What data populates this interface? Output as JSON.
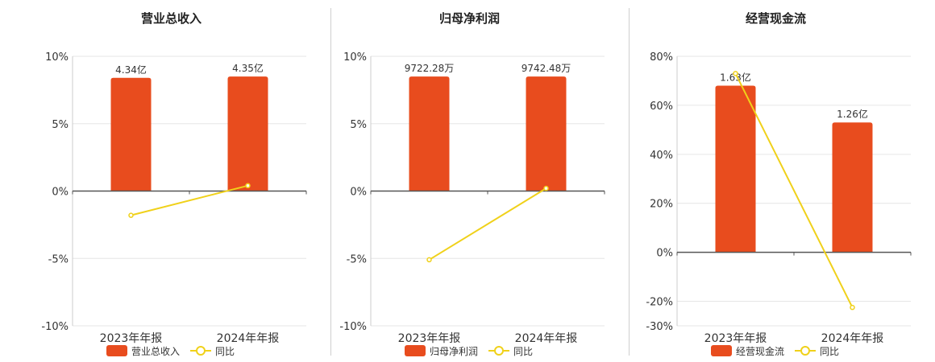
{
  "colors": {
    "bar": "#E84C1E",
    "line": "#F0D11A",
    "grid": "#e6e6e6",
    "axis": "#555555"
  },
  "legend": {
    "bar_icon": "bar-swatch",
    "line_icon": "line-with-circle-marker"
  },
  "chart_data": [
    {
      "type": "bar",
      "title": "营业总收入",
      "categories": [
        "2023年年报",
        "2024年年报"
      ],
      "bar_labels": [
        "4.34亿",
        "4.35亿"
      ],
      "bar_legend": "营业总收入",
      "line_legend": "同比",
      "series": [
        {
          "name": "营业总收入",
          "kind": "bar",
          "values": [
            8.4,
            8.5
          ]
        },
        {
          "name": "同比",
          "kind": "line",
          "values": [
            -1.8,
            0.4
          ]
        }
      ],
      "ylim": [
        -10,
        10
      ],
      "yticks": [
        "10%",
        "5%",
        "0%",
        "-5%",
        "-10%"
      ],
      "ytick_values": [
        10,
        5,
        0,
        -5,
        -10
      ],
      "grid": true
    },
    {
      "type": "bar",
      "title": "归母净利润",
      "categories": [
        "2023年年报",
        "2024年年报"
      ],
      "bar_labels": [
        "9722.28万",
        "9742.48万"
      ],
      "bar_legend": "归母净利润",
      "line_legend": "同比",
      "series": [
        {
          "name": "归母净利润",
          "kind": "bar",
          "values": [
            8.5,
            8.5
          ]
        },
        {
          "name": "同比",
          "kind": "line",
          "values": [
            -5.1,
            0.2
          ]
        }
      ],
      "ylim": [
        -10,
        10
      ],
      "yticks": [
        "10%",
        "5%",
        "0%",
        "-5%",
        "-10%"
      ],
      "ytick_values": [
        10,
        5,
        0,
        -5,
        -10
      ],
      "grid": true
    },
    {
      "type": "bar",
      "title": "经营现金流",
      "categories": [
        "2023年年报",
        "2024年年报"
      ],
      "bar_labels": [
        "1.63亿",
        "1.26亿"
      ],
      "bar_legend": "经营现金流",
      "line_legend": "同比",
      "series": [
        {
          "name": "经营现金流",
          "kind": "bar",
          "values": [
            68,
            53
          ]
        },
        {
          "name": "同比",
          "kind": "line",
          "values": [
            73,
            -22.5
          ]
        }
      ],
      "ylim": [
        -30,
        80
      ],
      "yticks": [
        "80%",
        "60%",
        "40%",
        "20%",
        "0%",
        "-20%",
        "-30%"
      ],
      "ytick_values": [
        80,
        60,
        40,
        20,
        0,
        -20,
        -30
      ],
      "grid": true
    }
  ]
}
